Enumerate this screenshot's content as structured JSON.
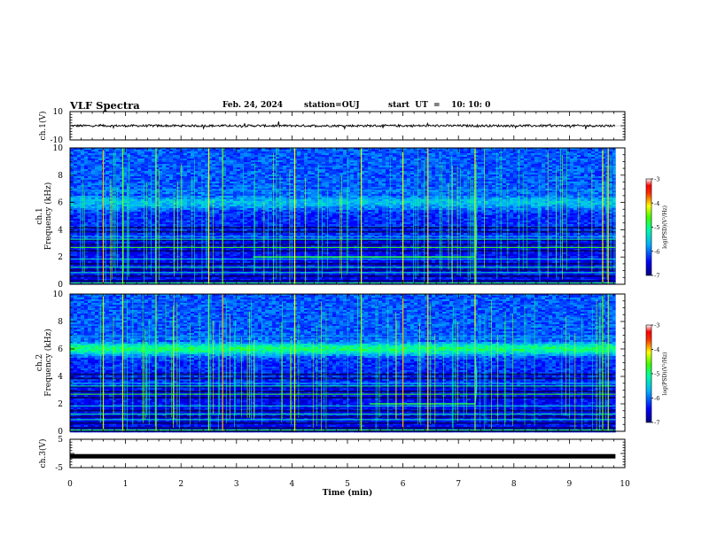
{
  "header": {
    "title": "VLF Spectra",
    "date": "Feb. 24, 2024",
    "station": "station=OUJ",
    "start": "start  UT  =    10: 10: 0"
  },
  "chart_data": [
    {
      "type": "line",
      "name": "ch1-waveform",
      "ylabel": "ch.1(V)",
      "ylim": [
        -10,
        10
      ],
      "yticks": [
        "10",
        "-10"
      ],
      "baseline_value": 0
    },
    {
      "type": "heatmap",
      "name": "ch1-spectrogram",
      "ylabel_line1": "ch.1",
      "ylabel_line2": "Frequency  (kHz)",
      "ylim": [
        0,
        10
      ],
      "yticks": [
        "0",
        "2",
        "4",
        "6",
        "8",
        "10"
      ],
      "colorbar": {
        "label": "log(PSD)(V²/Hz)",
        "range": [
          -7,
          -3
        ],
        "ticks": [
          "-3",
          "-4",
          "-5",
          "-6",
          "-7"
        ]
      },
      "features": {
        "emission_band_khz": 6,
        "tone_khz": 2,
        "tone_end_min": 7.3,
        "sferic_times_min": [
          0.6,
          0.95,
          1.55,
          2.5,
          2.75,
          4.05,
          5.25,
          6.0,
          6.45,
          7.3,
          9.6,
          9.7
        ]
      }
    },
    {
      "type": "heatmap",
      "name": "ch2-spectrogram",
      "ylabel_line1": "ch.2",
      "ylabel_line2": "Frequency  (kHz)",
      "ylim": [
        0,
        10
      ],
      "yticks": [
        "0",
        "2",
        "4",
        "6",
        "8",
        "10"
      ],
      "colorbar": {
        "label": "log(PSD)(V²/Hz)",
        "range": [
          -7,
          -3
        ],
        "ticks": [
          "-3",
          "-4",
          "-5",
          "-6",
          "-7"
        ]
      },
      "features": {
        "emission_band_khz": 6,
        "tone_khz": 2,
        "tone_start_min": 5.4,
        "tone_end_min": 7.3,
        "sferic_times_min": [
          0.6,
          0.95,
          1.55,
          2.5,
          2.75,
          4.05,
          5.25,
          6.0,
          6.45,
          7.3,
          9.6,
          9.7
        ]
      }
    },
    {
      "type": "line",
      "name": "ch3-waveform",
      "ylabel": "ch.3(V)",
      "ylim": [
        -5,
        5
      ],
      "yticks": [
        "5",
        "-5"
      ],
      "baseline_value": -1
    }
  ],
  "x_axis": {
    "label": "Time  (min)",
    "range": [
      0,
      10
    ],
    "ticks": [
      "0",
      "1",
      "2",
      "3",
      "4",
      "5",
      "6",
      "7",
      "8",
      "9",
      "10"
    ],
    "data_end_min": 9.83
  },
  "colors": {
    "background": "#ffffff",
    "axes": "#000000"
  }
}
